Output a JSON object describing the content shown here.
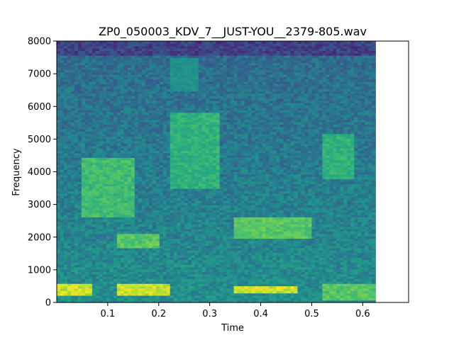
{
  "chart_data": {
    "type": "heatmap",
    "title": "ZP0_050003_KDV_7__JUST-YOU__2379-805.wav",
    "xlabel": "Time",
    "ylabel": "Frequency",
    "xlim": [
      0.0,
      0.69
    ],
    "ylim": [
      0,
      8000
    ],
    "data_extent_x": [
      0.0,
      0.625
    ],
    "x_ticks": [
      0.1,
      0.2,
      0.3,
      0.4,
      0.5,
      0.6
    ],
    "x_tick_labels": [
      "0.1",
      "0.2",
      "0.3",
      "0.4",
      "0.5",
      "0.6"
    ],
    "y_ticks": [
      0,
      1000,
      2000,
      3000,
      4000,
      5000,
      6000,
      7000,
      8000
    ],
    "y_tick_labels": [
      "0",
      "1000",
      "2000",
      "3000",
      "4000",
      "5000",
      "6000",
      "7000",
      "8000"
    ],
    "colormap": "viridis",
    "grid": false,
    "energy_regions": [
      {
        "t": [
          0.0,
          0.07
        ],
        "f": [
          250,
          550
        ],
        "level": 1.0
      },
      {
        "t": [
          0.12,
          0.22
        ],
        "f": [
          250,
          600
        ],
        "level": 1.0
      },
      {
        "t": [
          0.35,
          0.47
        ],
        "f": [
          280,
          520
        ],
        "level": 1.0
      },
      {
        "t": [
          0.52,
          0.625
        ],
        "f": [
          100,
          600
        ],
        "level": 0.8
      },
      {
        "t": [
          0.12,
          0.2
        ],
        "f": [
          1700,
          2100
        ],
        "level": 0.8
      },
      {
        "t": [
          0.35,
          0.5
        ],
        "f": [
          2000,
          2600
        ],
        "level": 0.8
      },
      {
        "t": [
          0.05,
          0.15
        ],
        "f": [
          2600,
          4400
        ],
        "level": 0.75
      },
      {
        "t": [
          0.22,
          0.32
        ],
        "f": [
          3500,
          5800
        ],
        "level": 0.7
      },
      {
        "t": [
          0.52,
          0.58
        ],
        "f": [
          3800,
          5200
        ],
        "level": 0.7
      },
      {
        "t": [
          0.22,
          0.28
        ],
        "f": [
          6500,
          7500
        ],
        "level": 0.55
      }
    ]
  }
}
